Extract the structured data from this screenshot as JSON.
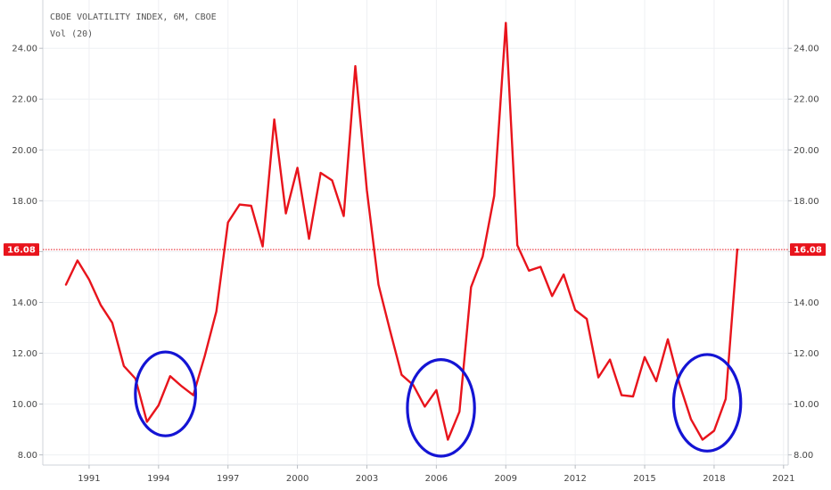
{
  "legend": {
    "title": "CBOE VOLATILITY INDEX, 6M, CBOE",
    "subtitle": "Vol (20)"
  },
  "chart_data": {
    "type": "line",
    "title": "CBOE VOLATILITY INDEX, 6M, CBOE",
    "subtitle": "Vol (20)",
    "xlabel": "",
    "ylabel": "",
    "ylim": [
      7.6,
      25.9
    ],
    "xlim": [
      1989.0,
      2021.2
    ],
    "yticks": [
      8,
      10,
      12,
      14,
      16,
      18,
      20,
      22,
      24
    ],
    "ytick_labels": [
      "8.00",
      "10.00",
      "12.00",
      "14.00",
      "16.00",
      "18.00",
      "20.00",
      "22.00",
      "24.00"
    ],
    "xticks": [
      1991,
      1994,
      1997,
      2000,
      2003,
      2006,
      2009,
      2012,
      2015,
      2018,
      2021
    ],
    "xtick_labels": [
      "1991",
      "1994",
      "1997",
      "2000",
      "2003",
      "2006",
      "2009",
      "2012",
      "2015",
      "2018",
      "2021"
    ],
    "grid": true,
    "series": [
      {
        "color": "#e8141c",
        "x": [
          1990.0,
          1990.5,
          1991.0,
          1991.5,
          1992.0,
          1992.5,
          1993.0,
          1993.5,
          1994.0,
          1994.5,
          1995.0,
          1995.5,
          1996.0,
          1996.5,
          1997.0,
          1997.5,
          1998.0,
          1998.5,
          1999.0,
          1999.5,
          2000.0,
          2000.5,
          2001.0,
          2001.5,
          2002.0,
          2002.5,
          2003.0,
          2003.5,
          2004.0,
          2004.5,
          2005.0,
          2005.5,
          2006.0,
          2006.5,
          2007.0,
          2007.5,
          2008.0,
          2008.5,
          2009.0,
          2009.5,
          2010.0,
          2010.5,
          2011.0,
          2011.5,
          2012.0,
          2012.5,
          2013.0,
          2013.5,
          2014.0,
          2014.5,
          2015.0,
          2015.5,
          2016.0,
          2016.5,
          2017.0,
          2017.5,
          2018.0,
          2018.5,
          2019.0
        ],
        "values": [
          14.7,
          15.65,
          14.9,
          13.9,
          13.2,
          11.5,
          11.0,
          9.3,
          9.95,
          11.1,
          10.7,
          10.35,
          11.9,
          13.65,
          17.15,
          17.85,
          17.8,
          16.2,
          21.2,
          17.5,
          19.3,
          16.5,
          19.1,
          18.8,
          17.4,
          23.3,
          18.4,
          14.7,
          12.9,
          11.15,
          10.75,
          9.9,
          10.55,
          8.6,
          9.7,
          14.6,
          15.8,
          18.2,
          25.0,
          16.25,
          15.25,
          15.4,
          14.25,
          15.1,
          13.7,
          13.35,
          11.05,
          11.75,
          10.35,
          10.3,
          11.85,
          10.9,
          12.55,
          10.8,
          9.4,
          8.6,
          8.95,
          10.2,
          16.08
        ]
      }
    ],
    "last_value": 16.08,
    "last_value_label": "16.08",
    "highlight_circles": [
      {
        "center_x": 1994.3,
        "center_y": 10.4,
        "radius_x": 1.3,
        "radius_y": 1.65
      },
      {
        "center_x": 2006.2,
        "center_y": 9.85,
        "radius_x": 1.45,
        "radius_y": 1.9
      },
      {
        "center_x": 2017.7,
        "center_y": 10.05,
        "radius_x": 1.45,
        "radius_y": 1.9
      }
    ]
  }
}
